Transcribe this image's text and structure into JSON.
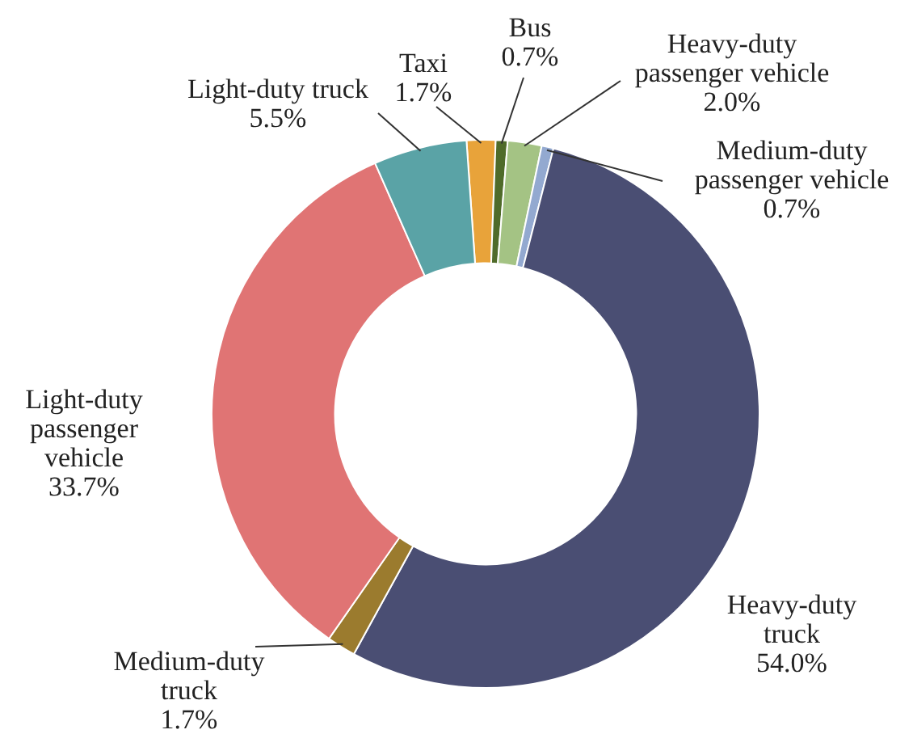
{
  "chart_data": {
    "type": "donut",
    "categories": [
      "Taxi",
      "Bus",
      "Heavy-duty passenger vehicle",
      "Medium-duty passenger vehicle",
      "Heavy-duty truck",
      "Medium-duty truck",
      "Light-duty passenger vehicle",
      "Light-duty truck"
    ],
    "values": [
      1.7,
      0.7,
      2.0,
      0.7,
      54.0,
      1.7,
      33.7,
      5.5
    ],
    "value_labels": [
      "1.7%",
      "0.7%",
      "2.0%",
      "0.7%",
      "54.0%",
      "1.7%",
      "33.7%",
      "5.5%"
    ],
    "colors": [
      "#e8a33a",
      "#4f6b2a",
      "#a4c384",
      "#93a9d0",
      "#4a4e73",
      "#9b7b2e",
      "#e07474",
      "#5aa3a6"
    ]
  }
}
